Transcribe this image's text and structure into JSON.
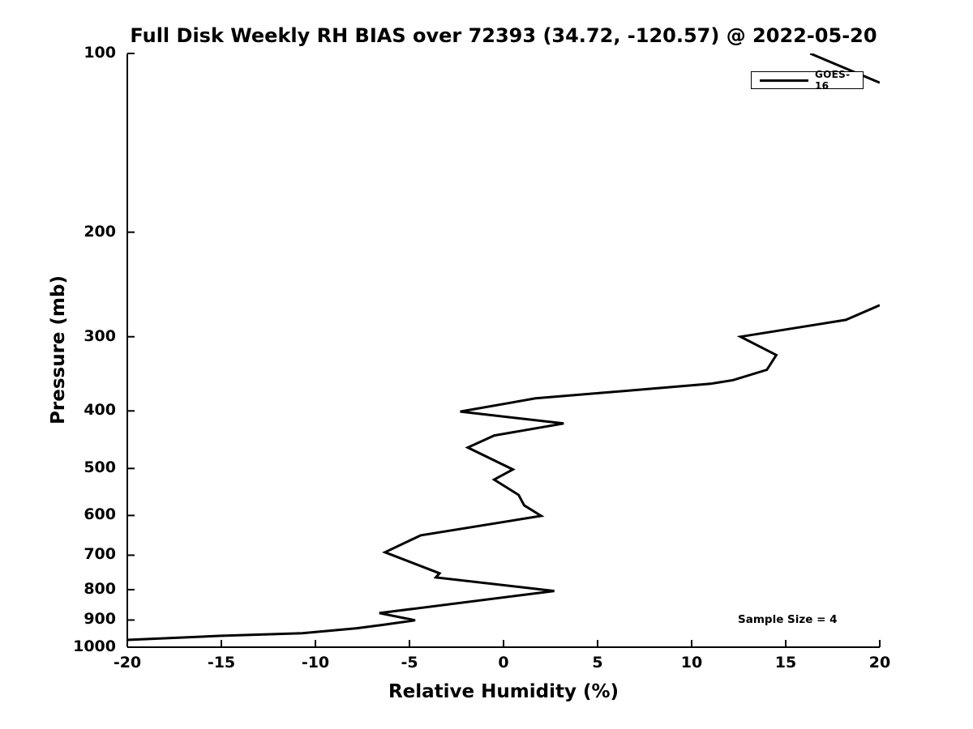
{
  "figure": {
    "background": "#ffffff"
  },
  "chart_data": {
    "type": "line",
    "title": "Full Disk Weekly RH BIAS over 72393 (34.72, -120.57) @ 2022-05-20",
    "xlabel": "Relative Humidity (%)",
    "ylabel": "Pressure (mb)",
    "grid": false,
    "line_color": "#000000",
    "x_axis": {
      "min": -20,
      "max": 20,
      "ticks": [
        -20,
        -15,
        -10,
        -5,
        0,
        5,
        10,
        15,
        20
      ],
      "tick_labels": [
        "-20",
        "-15",
        "-10",
        "-5",
        "0",
        "5",
        "10",
        "15",
        "20"
      ]
    },
    "y_axis": {
      "min": 100,
      "max": 1000,
      "scale": "log",
      "inverted": true,
      "ticks": [
        100,
        200,
        300,
        400,
        500,
        600,
        700,
        800,
        900,
        1000
      ],
      "tick_labels": [
        "100",
        "200",
        "300",
        "400",
        "500",
        "600",
        "700",
        "800",
        "900",
        "1000"
      ]
    },
    "legend": {
      "position": "upper-right",
      "entries": [
        {
          "label": "GOES-16",
          "color": "#000000",
          "line_width": 3
        }
      ]
    },
    "annotation": {
      "text": "Sample Size = 4"
    },
    "series": [
      {
        "name": "GOES-16",
        "color": "#000000",
        "line_width": 3,
        "units": {
          "x": "RH bias (%)",
          "y": "pressure (mb)"
        },
        "segments": [
          [
            [
              16.3,
              100
            ],
            [
              20.0,
              112
            ]
          ],
          [
            [
              20.0,
              265.5
            ],
            [
              18.2,
              281
            ],
            [
              12.6,
              300
            ],
            [
              14.5,
              322
            ],
            [
              14.0,
              341
            ],
            [
              12.2,
              355
            ],
            [
              11.0,
              360
            ],
            [
              1.7,
              381
            ],
            [
              -2.3,
              401
            ],
            [
              3.2,
              420
            ],
            [
              -0.5,
              440
            ],
            [
              -1.9,
              461
            ],
            [
              0.5,
              502
            ],
            [
              -0.5,
              522
            ],
            [
              0.8,
              554
            ],
            [
              1.1,
              577
            ],
            [
              2.0,
              601
            ],
            [
              -4.4,
              648
            ],
            [
              -6.3,
              692
            ],
            [
              -3.4,
              751
            ],
            [
              -3.6,
              763
            ],
            [
              2.7,
              804
            ],
            [
              -6.6,
              876
            ],
            [
              -4.7,
              901
            ],
            [
              -6.4,
              917
            ],
            [
              -7.8,
              929
            ],
            [
              -10.7,
              947
            ],
            [
              -15.1,
              957
            ],
            [
              -20.0,
              972
            ]
          ]
        ]
      }
    ]
  }
}
